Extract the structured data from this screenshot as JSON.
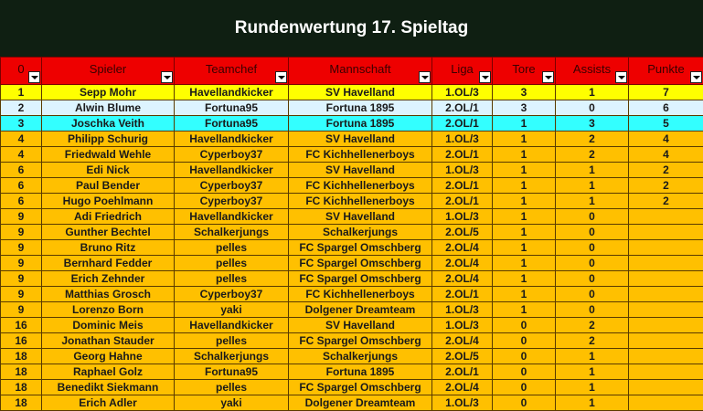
{
  "title": "Rundenwertung 17. Spieltag",
  "columns": [
    "0",
    "Spieler",
    "Teamchef",
    "Mannschaft",
    "Liga",
    "Tore",
    "Assists",
    "Punkte"
  ],
  "rows": [
    {
      "style": "yellow",
      "cells": [
        "1",
        "Sepp Mohr",
        "Havellandkicker",
        "SV Havelland",
        "1.OL/3",
        "3",
        "1",
        "7"
      ]
    },
    {
      "style": "lblue",
      "cells": [
        "2",
        "Alwin Blume",
        "Fortuna95",
        "Fortuna 1895",
        "2.OL/1",
        "3",
        "0",
        "6"
      ]
    },
    {
      "style": "cyan",
      "cells": [
        "3",
        "Joschka Veith",
        "Fortuna95",
        "Fortuna 1895",
        "2.OL/1",
        "1",
        "3",
        "5"
      ]
    },
    {
      "style": "gold",
      "cells": [
        "4",
        "Philipp Schurig",
        "Havellandkicker",
        "SV Havelland",
        "1.OL/3",
        "1",
        "2",
        "4"
      ]
    },
    {
      "style": "gold",
      "cells": [
        "4",
        "Friedwald Wehle",
        "Cyperboy37",
        "FC Kichhellenerboys",
        "2.OL/1",
        "1",
        "2",
        "4"
      ]
    },
    {
      "style": "gold",
      "cells": [
        "6",
        "Edi Nick",
        "Havellandkicker",
        "SV Havelland",
        "1.OL/3",
        "1",
        "1",
        "2"
      ]
    },
    {
      "style": "gold",
      "cells": [
        "6",
        "Paul Bender",
        "Cyperboy37",
        "FC Kichhellenerboys",
        "2.OL/1",
        "1",
        "1",
        "2"
      ]
    },
    {
      "style": "gold",
      "cells": [
        "6",
        "Hugo Poehlmann",
        "Cyperboy37",
        "FC Kichhellenerboys",
        "2.OL/1",
        "1",
        "1",
        "2"
      ]
    },
    {
      "style": "gold",
      "cells": [
        "9",
        "Adi Friedrich",
        "Havellandkicker",
        "SV Havelland",
        "1.OL/3",
        "1",
        "0",
        ""
      ]
    },
    {
      "style": "gold",
      "cells": [
        "9",
        "Gunther Bechtel",
        "Schalkerjungs",
        "Schalkerjungs",
        "2.OL/5",
        "1",
        "0",
        ""
      ]
    },
    {
      "style": "gold",
      "cells": [
        "9",
        "Bruno Ritz",
        "pelles",
        "FC Spargel Omschberg",
        "2.OL/4",
        "1",
        "0",
        ""
      ]
    },
    {
      "style": "gold",
      "cells": [
        "9",
        "Bernhard Fedder",
        "pelles",
        "FC Spargel Omschberg",
        "2.OL/4",
        "1",
        "0",
        ""
      ]
    },
    {
      "style": "gold",
      "cells": [
        "9",
        "Erich Zehnder",
        "pelles",
        "FC Spargel Omschberg",
        "2.OL/4",
        "1",
        "0",
        ""
      ]
    },
    {
      "style": "gold",
      "cells": [
        "9",
        "Matthias Grosch",
        "Cyperboy37",
        "FC Kichhellenerboys",
        "2.OL/1",
        "1",
        "0",
        ""
      ]
    },
    {
      "style": "gold",
      "cells": [
        "9",
        "Lorenzo Born",
        "yaki",
        "Dolgener Dreamteam",
        "1.OL/3",
        "1",
        "0",
        ""
      ]
    },
    {
      "style": "gold",
      "cells": [
        "16",
        "Dominic Meis",
        "Havellandkicker",
        "SV Havelland",
        "1.OL/3",
        "0",
        "2",
        ""
      ]
    },
    {
      "style": "gold",
      "cells": [
        "16",
        "Jonathan Stauder",
        "pelles",
        "FC Spargel Omschberg",
        "2.OL/4",
        "0",
        "2",
        ""
      ]
    },
    {
      "style": "gold",
      "cells": [
        "18",
        "Georg Hahne",
        "Schalkerjungs",
        "Schalkerjungs",
        "2.OL/5",
        "0",
        "1",
        ""
      ]
    },
    {
      "style": "gold",
      "cells": [
        "18",
        "Raphael Golz",
        "Fortuna95",
        "Fortuna 1895",
        "2.OL/1",
        "0",
        "1",
        ""
      ]
    },
    {
      "style": "gold",
      "cells": [
        "18",
        "Benedikt Siekmann",
        "pelles",
        "FC Spargel Omschberg",
        "2.OL/4",
        "0",
        "1",
        ""
      ]
    },
    {
      "style": "gold",
      "cells": [
        "18",
        "Erich Adler",
        "yaki",
        "Dolgener Dreamteam",
        "1.OL/3",
        "0",
        "1",
        ""
      ]
    }
  ]
}
